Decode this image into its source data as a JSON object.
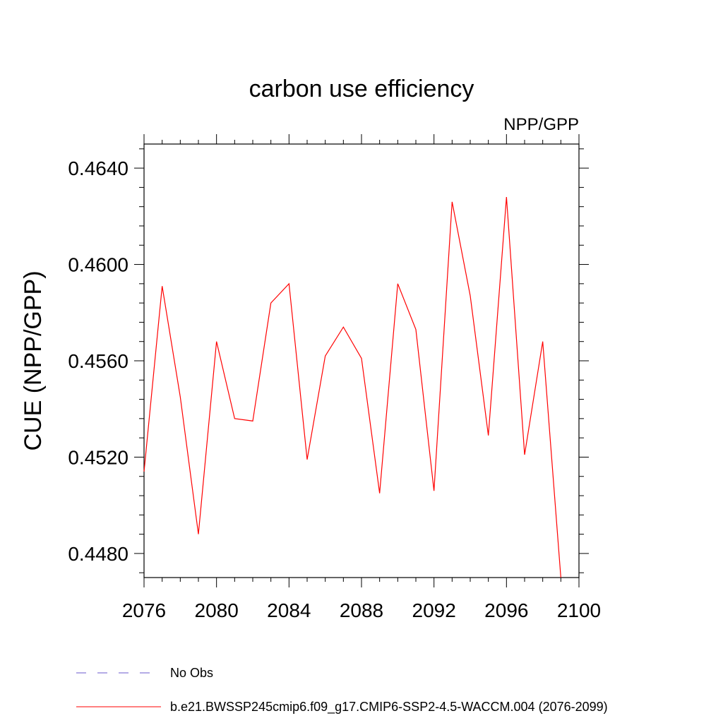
{
  "chart_data": {
    "type": "line",
    "title": "carbon use efficiency",
    "subtitle": "NPP/GPP",
    "xlabel": "",
    "ylabel": "CUE  (NPP/GPP)",
    "xlim": [
      2076,
      2100
    ],
    "ylim": [
      0.447,
      0.465
    ],
    "x_ticks": [
      2076,
      2080,
      2084,
      2088,
      2092,
      2096,
      2100
    ],
    "x_tick_labels": [
      "2076",
      "2080",
      "2084",
      "2088",
      "2092",
      "2096",
      "2100"
    ],
    "y_ticks": [
      0.448,
      0.452,
      0.456,
      0.46,
      0.464
    ],
    "y_tick_labels": [
      "0.4480",
      "0.4520",
      "0.4560",
      "0.4600",
      "0.4640"
    ],
    "grid": false,
    "legend_position": "bottom",
    "series": [
      {
        "name": "b.e21.BWSSP245cmip6.f09_g17.CMIP6-SSP2-4.5-WACCM.004 (2076-2099)",
        "color": "#ff0000",
        "style": "solid",
        "x": [
          2076,
          2077,
          2078,
          2079,
          2080,
          2081,
          2082,
          2083,
          2084,
          2085,
          2086,
          2087,
          2088,
          2089,
          2090,
          2091,
          2092,
          2093,
          2094,
          2095,
          2096,
          2097,
          2098,
          2099
        ],
        "values": [
          0.4514,
          0.4591,
          0.4545,
          0.4488,
          0.4568,
          0.4536,
          0.4535,
          0.4584,
          0.4592,
          0.4519,
          0.4562,
          0.4574,
          0.4561,
          0.4505,
          0.4592,
          0.4573,
          0.4506,
          0.4626,
          0.4587,
          0.4529,
          0.4628,
          0.4521,
          0.4568,
          0.447
        ]
      }
    ],
    "legend": [
      {
        "label": "No Obs",
        "color": "#6a5acd",
        "style": "dashed"
      },
      {
        "label": "b.e21.BWSSP245cmip6.f09_g17.CMIP6-SSP2-4.5-WACCM.004 (2076-2099)",
        "color": "#ff0000",
        "style": "solid"
      }
    ]
  }
}
